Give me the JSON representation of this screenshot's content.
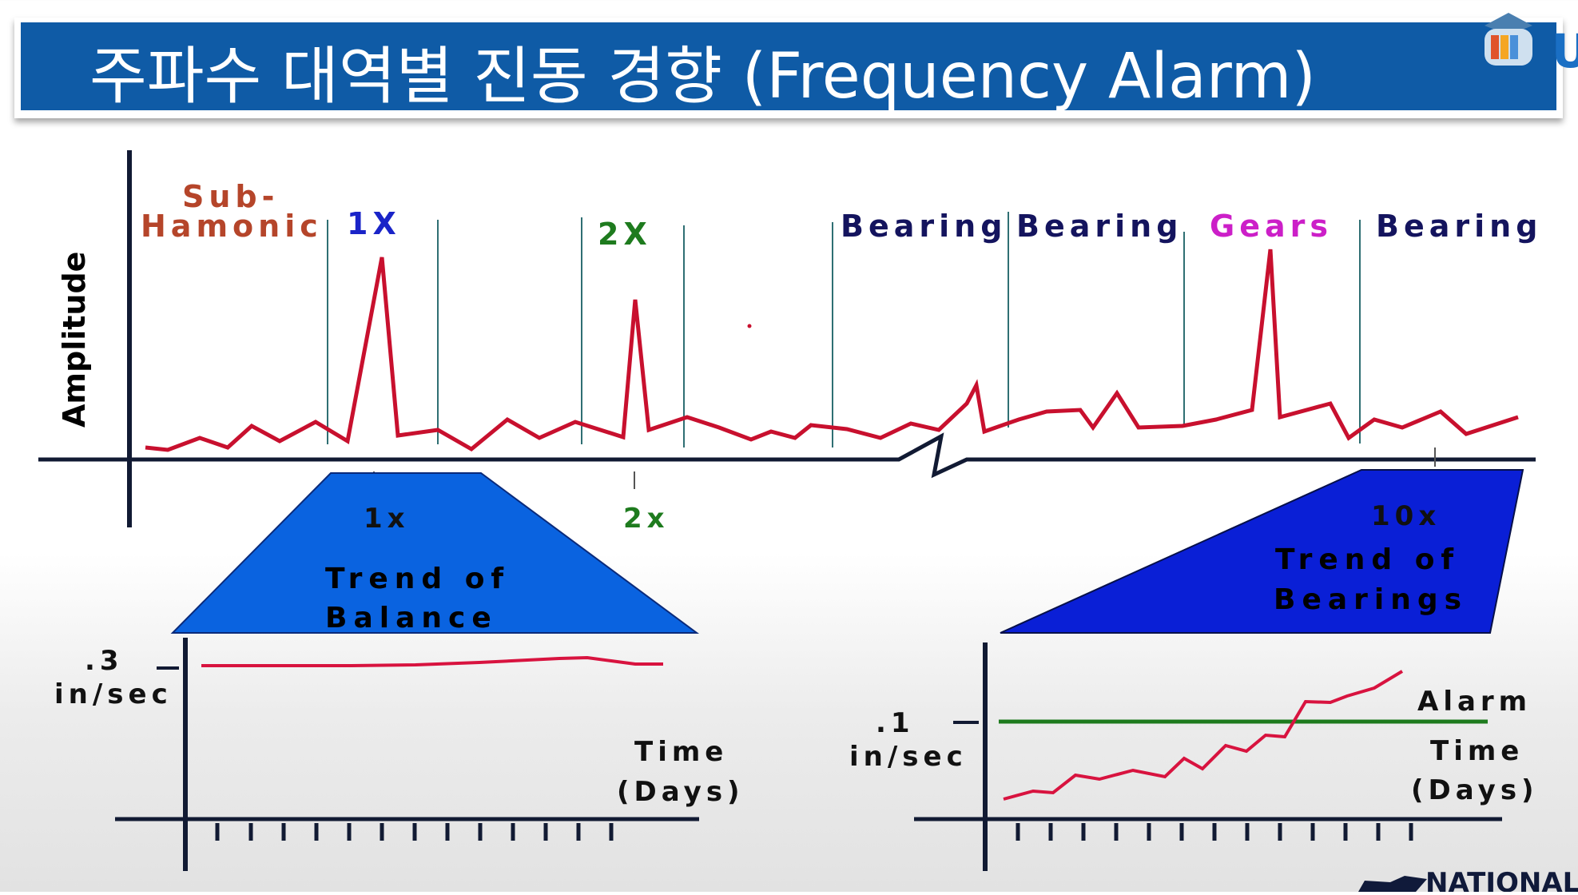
{
  "title": "주파수 대역별 진동 경향 (Frequency Alarm)",
  "colors": {
    "title_bar": "#0f5ba6",
    "spectrum_line": "#c8102e",
    "trend_line": "#d8133f",
    "alarm_line": "#1e7b1e",
    "balance_trapezoid": "#0a63e0",
    "bearing_trapezoid": "#0a1fd6",
    "band_divider": "#2f6f73"
  },
  "spectrum": {
    "y_label": "Amplitude",
    "bands": {
      "subharmonic_line1": "Sub-",
      "subharmonic_line2": "Hamonic",
      "onex": "1X",
      "twox": "2X",
      "bearing1": "Bearing",
      "bearing2": "Bearing",
      "gears": "Gears",
      "bearing3": "Bearing"
    },
    "markers": {
      "onex": "1x",
      "twox": "2x",
      "tenx": "10x"
    }
  },
  "balance_trend": {
    "label_line1": "Trend of",
    "label_line2": "Balance",
    "y_value": ".3",
    "y_unit": "in/sec",
    "x_label_line1": "Time",
    "x_label_line2": "(Days)"
  },
  "bearing_trend": {
    "label_line1": "Trend of",
    "label_line2": "Bearings",
    "y_value": ".1",
    "y_unit": "in/sec",
    "alarm_label": "Alarm",
    "x_label_line1": "Time",
    "x_label_line2": "(Days)"
  },
  "logo": {
    "text": "NATIONAL",
    "badge_letter": "U"
  }
}
